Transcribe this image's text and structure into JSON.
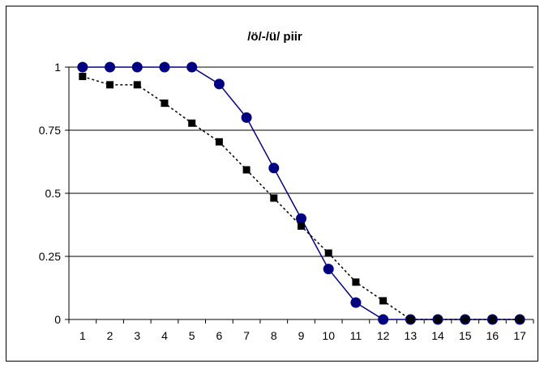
{
  "chart_data": {
    "type": "line",
    "title": "/ö/-/ü/ piir",
    "xlabel": "",
    "ylabel": "",
    "categories": [
      "1",
      "2",
      "3",
      "4",
      "5",
      "6",
      "7",
      "8",
      "9",
      "10",
      "11",
      "12",
      "13",
      "14",
      "15",
      "16",
      "17"
    ],
    "ylim": [
      0,
      1
    ],
    "yticks": [
      "0",
      "0.25",
      "0.5",
      "0.75",
      "1"
    ],
    "grid": "horizontal",
    "legend": "none",
    "series": [
      {
        "color": "#000080",
        "marker": "circle",
        "line": "solid",
        "values": [
          1,
          1,
          1,
          1,
          1,
          0.933,
          0.8,
          0.6,
          0.4,
          0.2,
          0.067,
          0,
          0,
          0,
          0,
          0,
          0
        ]
      },
      {
        "color": "#000000",
        "marker": "square",
        "line": "dotted",
        "values": [
          0.963,
          0.93,
          0.93,
          0.857,
          0.778,
          0.704,
          0.593,
          0.481,
          0.37,
          0.263,
          0.148,
          0.074,
          0,
          0,
          0,
          0,
          0
        ]
      }
    ]
  }
}
